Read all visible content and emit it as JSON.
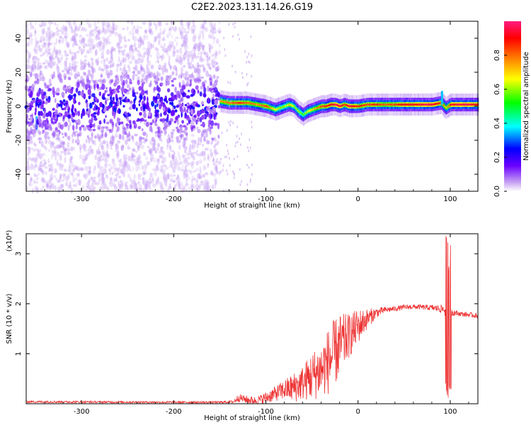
{
  "title": "C2E2.2023.131.14.26.G19",
  "chart_data": [
    {
      "type": "heatmap",
      "xlabel": "Height of straight line (km)",
      "ylabel": "Frequency (Hz)",
      "xlim": [
        -360,
        130
      ],
      "ylim": [
        -50,
        50
      ],
      "xticks": [
        -300,
        -200,
        -100,
        0,
        100
      ],
      "xtick_labels": [
        "-300",
        "-200",
        "-100",
        "0",
        "100"
      ],
      "yticks": [
        -40,
        -20,
        0,
        20,
        40
      ],
      "ytick_labels": [
        "-40",
        "-20",
        "0",
        "20",
        "40"
      ],
      "colorbar": {
        "label": "Normalized spectral amplitude",
        "range": [
          0,
          1
        ],
        "ticks": [
          0.0,
          0.2,
          0.4,
          0.6,
          0.8
        ],
        "tick_labels": [
          "0.0",
          "0.2",
          "0.4",
          "0.6",
          "0.8"
        ],
        "colormap": [
          "#ffffff",
          "#c9a6f2",
          "#6a00ff",
          "#0000ff",
          "#00ffff",
          "#00ff00",
          "#ffff00",
          "#ff8000",
          "#ff0000",
          "#ff1a80"
        ]
      },
      "noise_region_x": [
        -360,
        -150
      ],
      "sparse_region_x": [
        -150,
        -115
      ],
      "ridge": {
        "x": [
          -150,
          -140,
          -130,
          -120,
          -110,
          -100,
          -95,
          -90,
          -85,
          -80,
          -75,
          -70,
          -65,
          -60,
          -55,
          -50,
          -45,
          -40,
          -35,
          -30,
          -25,
          -20,
          -15,
          -10,
          -5,
          0,
          10,
          20,
          30,
          40,
          50,
          60,
          70,
          80,
          90,
          95,
          100,
          110,
          120,
          130
        ],
        "center": [
          3,
          2,
          2,
          2,
          1,
          0,
          -1,
          -2,
          -1,
          0,
          1,
          0,
          -3,
          -5,
          -3,
          -2,
          -1,
          0,
          0,
          1,
          1,
          0,
          1,
          0,
          0,
          0,
          1,
          1,
          1,
          1,
          1,
          1,
          1,
          1,
          2,
          -1,
          1,
          1,
          1,
          1
        ],
        "peak": [
          0.75,
          0.8,
          0.85,
          0.8,
          0.75,
          0.85,
          0.7,
          0.65,
          0.6,
          0.6,
          0.7,
          0.6,
          0.6,
          0.55,
          0.65,
          0.7,
          0.75,
          0.85,
          0.85,
          0.9,
          0.95,
          0.95,
          0.8,
          0.95,
          0.9,
          0.85,
          0.85,
          0.85,
          0.8,
          0.85,
          0.9,
          0.9,
          0.95,
          0.95,
          0.85,
          0.7,
          0.9,
          0.95,
          0.95,
          0.9
        ]
      },
      "spikes": [
        {
          "x": 92,
          "f": 5
        },
        {
          "x": -348,
          "f": -10
        }
      ]
    },
    {
      "type": "line",
      "xlabel": "Height of straight line (km)",
      "ylabel": "SNR (10 * v/v)",
      "multiplier": "(x10⁴)",
      "xlim": [
        -360,
        130
      ],
      "ylim": [
        0,
        3.4
      ],
      "xticks": [
        -300,
        -200,
        -100,
        0,
        100
      ],
      "xtick_labels": [
        "-300",
        "-200",
        "-100",
        "0",
        "100"
      ],
      "yticks": [
        1,
        2,
        3
      ],
      "ytick_labels": [
        "1",
        "2",
        "3"
      ],
      "series": [
        {
          "color": "#ee3333",
          "x": [
            -360,
            -200,
            -150,
            -135,
            -130,
            -120,
            -110,
            -100,
            -90,
            -80,
            -70,
            -60,
            -50,
            -40,
            -30,
            -20,
            -10,
            0,
            10,
            20,
            30,
            40,
            50,
            60,
            70,
            80,
            90,
            95,
            100,
            105,
            110,
            120,
            130
          ],
          "mean": [
            0.04,
            0.03,
            0.03,
            0.04,
            0.12,
            0.08,
            0.06,
            0.12,
            0.2,
            0.28,
            0.32,
            0.42,
            0.55,
            0.68,
            0.9,
            1.15,
            1.35,
            1.55,
            1.7,
            1.82,
            1.88,
            1.9,
            1.93,
            1.94,
            1.93,
            1.92,
            1.9,
            1.88,
            1.84,
            1.82,
            1.8,
            1.78,
            1.76
          ],
          "amplitude": [
            0.02,
            0.02,
            0.02,
            0.03,
            0.08,
            0.08,
            0.08,
            0.12,
            0.15,
            0.2,
            0.3,
            0.35,
            0.5,
            0.55,
            0.7,
            0.65,
            0.45,
            0.35,
            0.2,
            0.1,
            0.06,
            0.05,
            0.05,
            0.05,
            0.05,
            0.06,
            0.08,
            0.15,
            0.1,
            0.06,
            0.05,
            0.05,
            0.05
          ]
        }
      ],
      "spike": {
        "x": [
          95,
          101
        ],
        "ymax": 3.4,
        "ymin": 0.1
      }
    }
  ]
}
